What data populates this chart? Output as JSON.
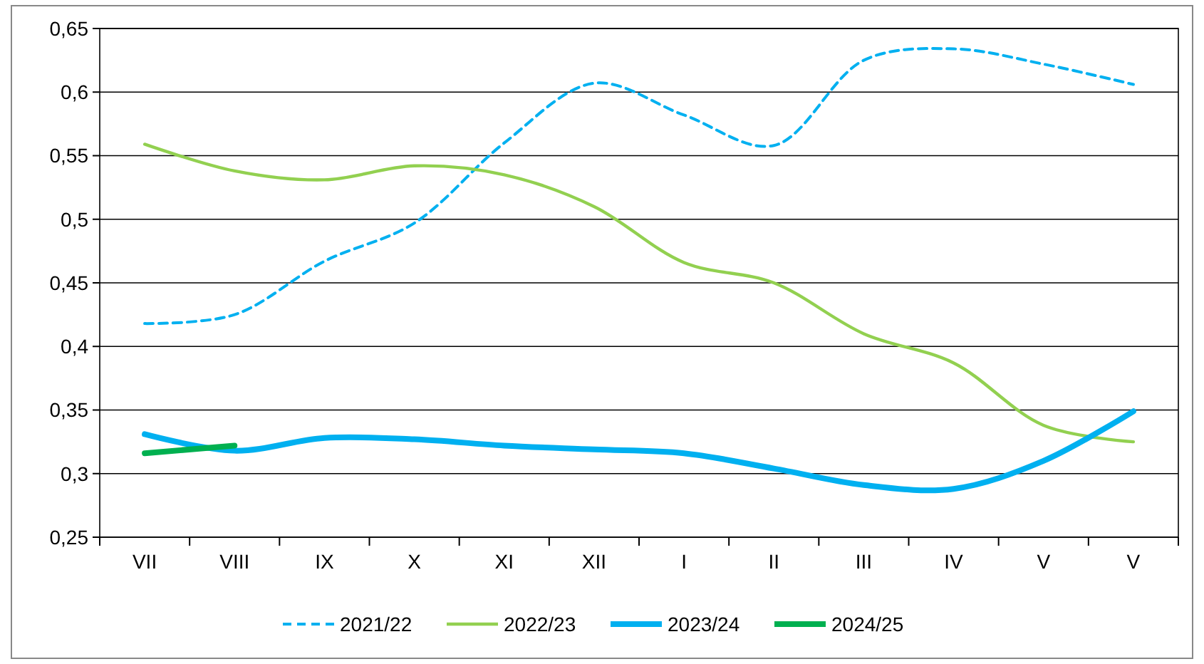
{
  "chart_data": {
    "type": "line",
    "categories": [
      "VII",
      "VIII",
      "IX",
      "X",
      "XI",
      "XII",
      "I",
      "II",
      "III",
      "IV",
      "V",
      "V"
    ],
    "ylim": [
      0.25,
      0.65
    ],
    "yticks": [
      {
        "value": 0.25,
        "label": "0,25"
      },
      {
        "value": 0.3,
        "label": "0,3"
      },
      {
        "value": 0.35,
        "label": "0,35"
      },
      {
        "value": 0.4,
        "label": "0,4"
      },
      {
        "value": 0.45,
        "label": "0,45"
      },
      {
        "value": 0.5,
        "label": "0,5"
      },
      {
        "value": 0.55,
        "label": "0,55"
      },
      {
        "value": 0.6,
        "label": "0,6"
      },
      {
        "value": 0.65,
        "label": "0,65"
      }
    ],
    "grid": "y",
    "legend": "bottom",
    "series": [
      {
        "name": "2021/22",
        "color": "#00b0f0",
        "line_style": "dashed",
        "values": [
          0.418,
          0.425,
          0.467,
          0.497,
          0.56,
          0.607,
          0.582,
          0.558,
          0.625,
          0.634,
          0.622,
          0.606
        ]
      },
      {
        "name": "2022/23",
        "color": "#92d050",
        "line_style": "solid",
        "values": [
          0.559,
          0.538,
          0.531,
          0.542,
          0.535,
          0.51,
          0.466,
          0.45,
          0.41,
          0.387,
          0.338,
          0.325
        ]
      },
      {
        "name": "2023/24",
        "color": "#00b0f0",
        "line_style": "solid",
        "values": [
          0.331,
          0.318,
          0.328,
          0.327,
          0.322,
          0.319,
          0.316,
          0.304,
          0.291,
          0.288,
          0.31,
          0.349
        ]
      },
      {
        "name": "2024/25",
        "color": "#00b050",
        "line_style": "solid",
        "values": [
          0.316,
          0.322,
          null,
          null,
          null,
          null,
          null,
          null,
          null,
          null,
          null,
          null
        ]
      }
    ]
  }
}
